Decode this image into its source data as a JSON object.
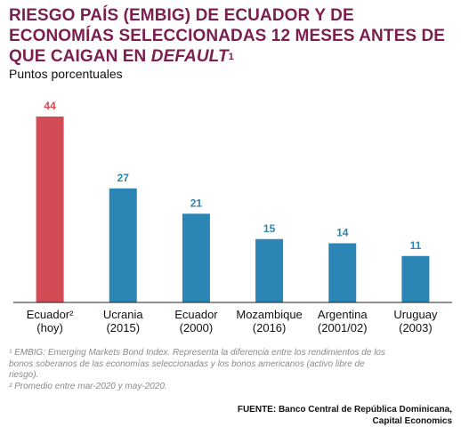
{
  "header": {
    "title_main": "RIESGO PAÍS (EMBIG) DE ECUADOR Y DE ECONOMÍAS SELECCIONADAS 12 MESES ANTES DE QUE CAIGAN EN ",
    "title_italic": "DEFAULT",
    "title_sup": "1",
    "subtitle": "Puntos porcentuales"
  },
  "colors": {
    "highlight": "#d24b55",
    "bar": "#2b86b5",
    "title": "#7b1f4f"
  },
  "chart_data": {
    "type": "bar",
    "title": "RIESGO PAÍS (EMBIG) DE ECUADOR Y DE ECONOMÍAS SELECCIONADAS 12 MESES ANTES DE QUE CAIGAN EN DEFAULT",
    "ylabel": "Puntos porcentuales",
    "xlabel": "",
    "categories": [
      [
        "Ecuador²",
        "(hoy)"
      ],
      [
        "Ucrania",
        "(2015)"
      ],
      [
        "Ecuador",
        "(2000)"
      ],
      [
        "Mozambique",
        "(2016)"
      ],
      [
        "Argentina",
        "(2001/02)"
      ],
      [
        "Uruguay",
        "(2003)"
      ]
    ],
    "values": [
      44,
      27,
      21,
      15,
      14,
      11
    ],
    "highlight_index": 0,
    "ylim": [
      0,
      44
    ],
    "grid": false,
    "data_labels": true
  },
  "notes": [
    "¹ EMBIG: Emerging Markets Bond Index. Representa la diferencia entre los rendimientos de los bonos soberanos de las economías seleccionadas y los bonos americanos (activo libre de riesgo).",
    "² Promedio entre mar-2020 y may-2020."
  ],
  "source": {
    "line1": "FUENTE: Banco Central de República Dominicana,",
    "line2": "Capital Economics"
  }
}
